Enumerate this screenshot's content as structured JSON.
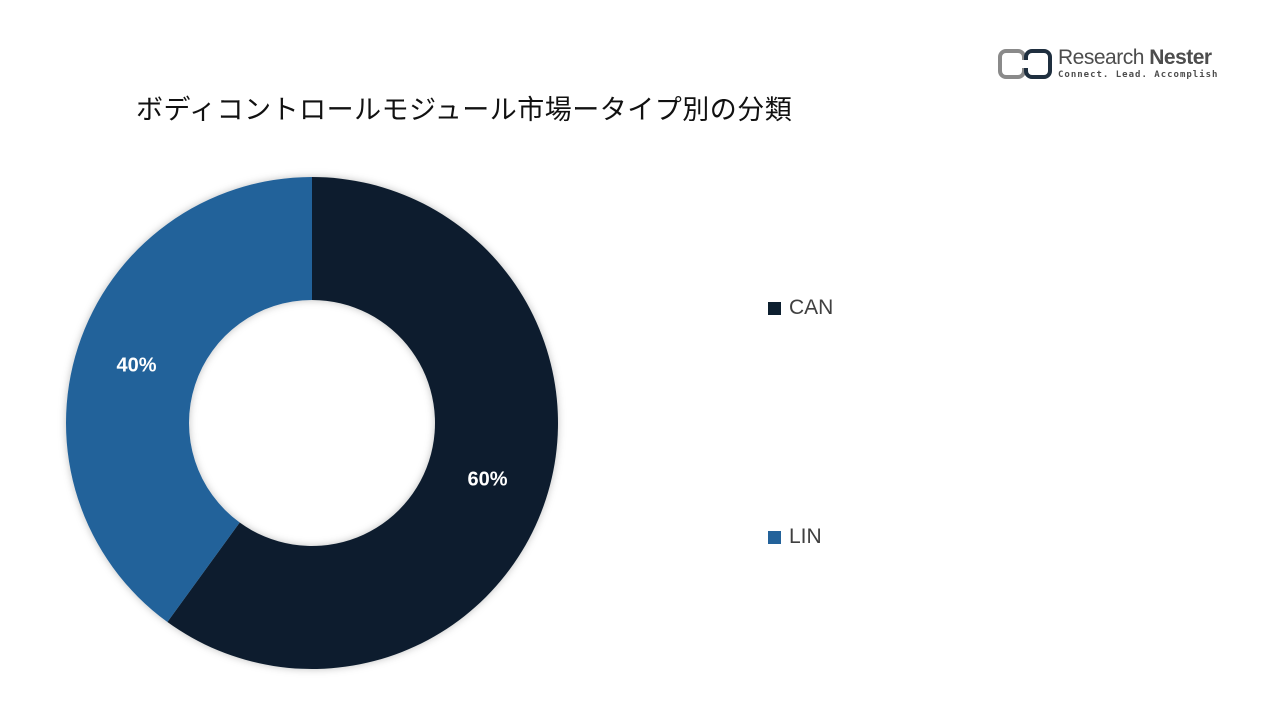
{
  "header": {
    "title": "ボディコントロールモジュール市場ータイプ別の分類"
  },
  "logo": {
    "name_part1": "Research",
    "name_part2": "Nester",
    "tagline": "Connect. Lead. Accomplish"
  },
  "chart_data": {
    "type": "pie",
    "variant": "donut",
    "title": "ボディコントロールモジュール市場ータイプ別の分類",
    "legend_position": "right",
    "series": [
      {
        "name": "CAN",
        "value": 60,
        "label": "60%",
        "color": "#0d1f2f"
      },
      {
        "name": "LIN",
        "value": 40,
        "label": "40%",
        "color": "#23629a"
      }
    ]
  }
}
